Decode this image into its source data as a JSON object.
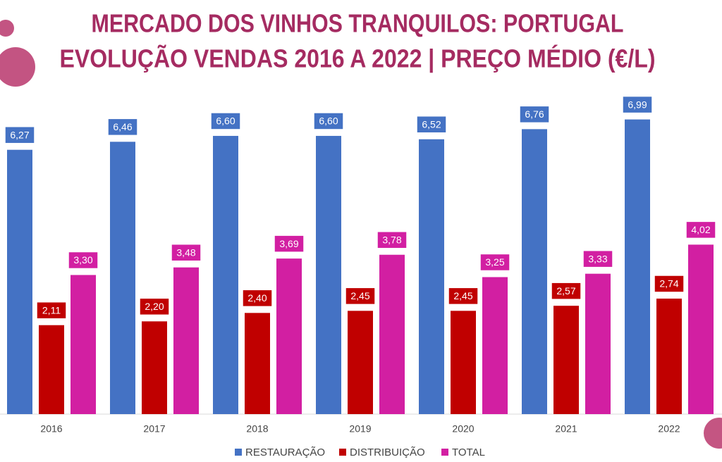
{
  "chart_data": {
    "type": "bar",
    "title": [
      "MERCADO DOS VINHOS TRANQUILOS: PORTUGAL",
      "EVOLUÇÃO VENDAS 2016 A 2022 | PREÇO MÉDIO (€/L)"
    ],
    "categories": [
      "2016",
      "2017",
      "2018",
      "2019",
      "2020",
      "2021",
      "2022"
    ],
    "series": [
      {
        "name": "RESTAURAÇÃO",
        "color": "#4472c4",
        "values": [
          6.27,
          6.46,
          6.6,
          6.6,
          6.52,
          6.76,
          6.99
        ],
        "value_labels": [
          "6,27",
          "6,46",
          "6,60",
          "6,60",
          "6,52",
          "6,76",
          "6,99"
        ]
      },
      {
        "name": "DISTRIBUIÇÃO",
        "color": "#c00000",
        "values": [
          2.11,
          2.2,
          2.4,
          2.45,
          2.45,
          2.57,
          2.74
        ],
        "value_labels": [
          "2,11",
          "2,20",
          "2,40",
          "2,45",
          "2,45",
          "2,57",
          "2,74"
        ]
      },
      {
        "name": "TOTAL",
        "color": "#d21fa2",
        "values": [
          3.3,
          3.48,
          3.69,
          3.78,
          3.25,
          3.33,
          4.02
        ],
        "value_labels": [
          "3,30",
          "3,48",
          "3,69",
          "3,78",
          "3,25",
          "3,33",
          "4,02"
        ]
      }
    ],
    "ylim": [
      0,
      7
    ],
    "legend": "bottom"
  }
}
